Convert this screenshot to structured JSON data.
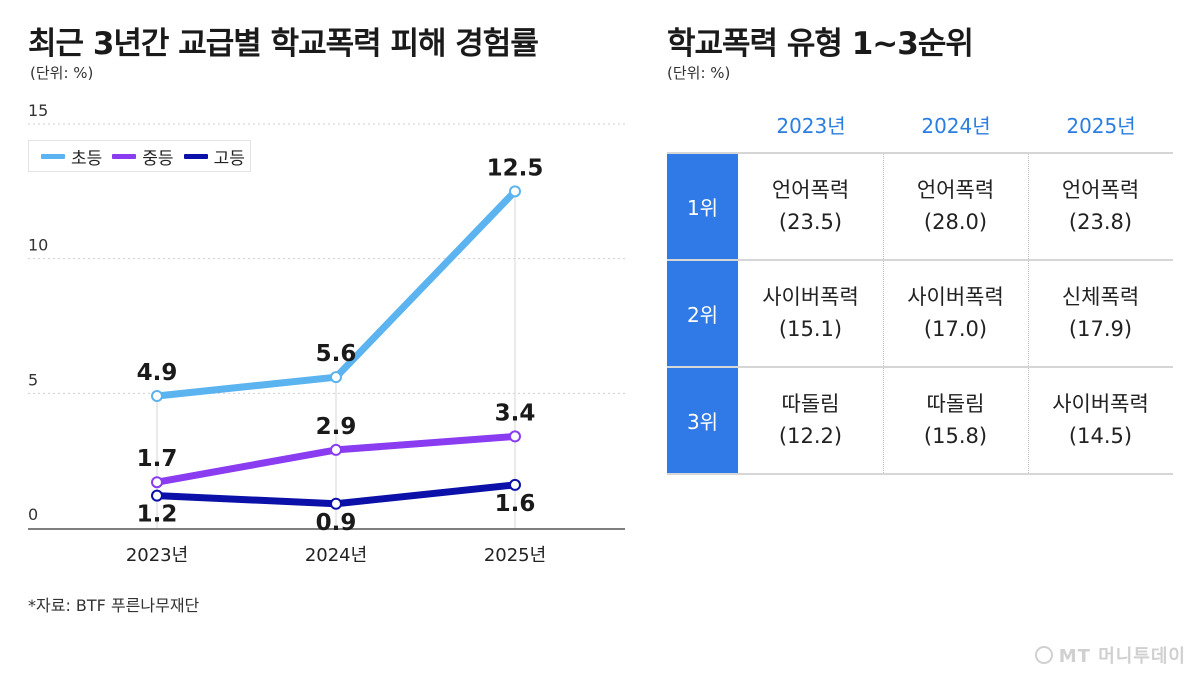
{
  "left": {
    "title": "최근 3년간 교급별 학교폭력 피해 경험률",
    "unit": "(단위: %)",
    "source": "*자료: BTF 푸른나무재단"
  },
  "right": {
    "title": "학교폭력 유형 1~3순위",
    "unit": "(단위: %)",
    "years": [
      "2023년",
      "2024년",
      "2025년"
    ],
    "rows": [
      {
        "rank": "1위",
        "cells": [
          {
            "type": "언어폭력",
            "value": "(23.5)"
          },
          {
            "type": "언어폭력",
            "value": "(28.0)"
          },
          {
            "type": "언어폭력",
            "value": "(23.8)"
          }
        ]
      },
      {
        "rank": "2위",
        "cells": [
          {
            "type": "사이버폭력",
            "value": "(15.1)"
          },
          {
            "type": "사이버폭력",
            "value": "(17.0)"
          },
          {
            "type": "신체폭력",
            "value": "(17.9)"
          }
        ]
      },
      {
        "rank": "3위",
        "cells": [
          {
            "type": "따돌림",
            "value": "(12.2)"
          },
          {
            "type": "따돌림",
            "value": "(15.8)"
          },
          {
            "type": "사이버폭력",
            "value": "(14.5)"
          }
        ]
      }
    ]
  },
  "logo": "MT 머니투데이",
  "chart_data": {
    "type": "line",
    "title": "최근 3년간 교급별 학교폭력 피해 경험률",
    "xlabel": "",
    "ylabel": "",
    "categories": [
      "2023년",
      "2024년",
      "2025년"
    ],
    "ylim": [
      0,
      15
    ],
    "yticks": [
      0,
      5,
      10,
      15
    ],
    "grid": true,
    "legend": "top-left",
    "series": [
      {
        "name": "초등",
        "values": [
          4.9,
          5.6,
          12.5
        ],
        "color": "#5bb3ef"
      },
      {
        "name": "중등",
        "values": [
          1.7,
          2.9,
          3.4
        ],
        "color": "#8a3cf0"
      },
      {
        "name": "고등",
        "values": [
          1.2,
          0.9,
          1.6
        ],
        "color": "#0a10a8"
      }
    ]
  }
}
